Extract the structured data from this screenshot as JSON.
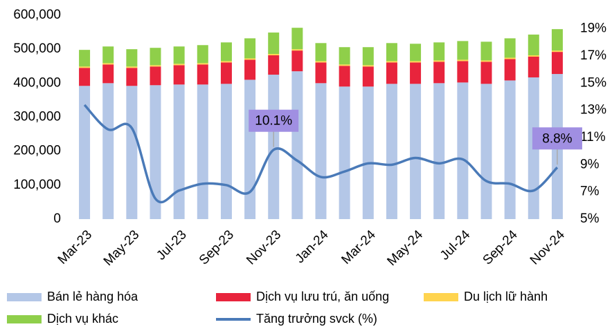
{
  "chart_data": {
    "type": "bar-line",
    "categories": [
      "Mar-23",
      null,
      "May-23",
      null,
      "Jul-23",
      null,
      "Sep-23",
      null,
      "Nov-23",
      null,
      "Jan-24",
      null,
      "Mar-24",
      null,
      "May-24",
      null,
      "Jul-24",
      null,
      "Sep-24",
      null,
      "Nov-24"
    ],
    "series": [
      {
        "name": "Bán lẻ hàng hóa",
        "color": "#b4c7e7",
        "stack": true,
        "values": [
          392000,
          400000,
          392000,
          394000,
          396000,
          396000,
          398000,
          410000,
          425000,
          435000,
          400000,
          390000,
          390000,
          398000,
          398000,
          400000,
          402000,
          398000,
          408000,
          417000,
          427000
        ]
      },
      {
        "name": "Dịch vụ lưu trú, ăn uống",
        "color": "#e8243c",
        "stack": true,
        "values": [
          53000,
          55000,
          53000,
          55000,
          57000,
          59000,
          63000,
          59000,
          57000,
          61000,
          61000,
          61000,
          59000,
          63000,
          63000,
          63000,
          63000,
          65000,
          63000,
          61000,
          65000
        ]
      },
      {
        "name": "Du lịch lữ hành",
        "color": "#ffd44f",
        "stack": true,
        "values": [
          4000,
          4000,
          4000,
          4000,
          4000,
          4000,
          4000,
          4000,
          4000,
          4000,
          4000,
          4000,
          4000,
          4000,
          4000,
          4000,
          4000,
          4000,
          4000,
          4000,
          4000
        ]
      },
      {
        "name": "Dịch vụ khác",
        "color": "#8fcf4a",
        "stack": true,
        "values": [
          49000,
          49000,
          51000,
          51000,
          51000,
          53000,
          55000,
          59000,
          63000,
          63000,
          53000,
          51000,
          53000,
          53000,
          51000,
          53000,
          55000,
          55000,
          57000,
          61000,
          63000
        ]
      },
      {
        "name": "Tăng trưởng svck (%)",
        "color": "#4a7ab8",
        "axis": "y2",
        "line": true,
        "values": [
          13.4,
          11.6,
          11.7,
          6.5,
          7.1,
          7.6,
          7.5,
          7.0,
          10.1,
          9.3,
          8.1,
          8.5,
          9.1,
          9.0,
          9.5,
          9.1,
          9.4,
          7.8,
          7.6,
          7.1,
          8.8
        ],
        "value_labels": [
          null,
          null,
          null,
          null,
          null,
          null,
          null,
          null,
          "10.1%",
          null,
          null,
          null,
          null,
          null,
          null,
          null,
          null,
          null,
          null,
          null,
          "8.8%"
        ]
      }
    ],
    "ylim": [
      0,
      600000
    ],
    "yticks": [
      0,
      {
        "value": 100000,
        "label": "100,000"
      },
      {
        "value": 200000,
        "label": "200,000"
      },
      {
        "value": 300000,
        "label": "300,000"
      },
      {
        "value": 400000,
        "label": "400,000"
      },
      {
        "value": 500000,
        "label": "500,000"
      },
      {
        "value": 600000,
        "label": "600,000"
      }
    ],
    "y2lim": [
      5,
      20
    ],
    "y2ticks": [
      {
        "value": 5,
        "label": "5%"
      },
      {
        "value": 7,
        "label": "7%"
      },
      {
        "value": 9,
        "label": "9%"
      },
      {
        "value": 11,
        "label": "11%"
      },
      {
        "value": 13,
        "label": "13%"
      },
      {
        "value": 15,
        "label": "15%"
      },
      {
        "value": 17,
        "label": "17%"
      },
      {
        "value": 19,
        "label": "19%"
      }
    ],
    "legend": "bottom",
    "annotation_color": "#a08fe2"
  }
}
